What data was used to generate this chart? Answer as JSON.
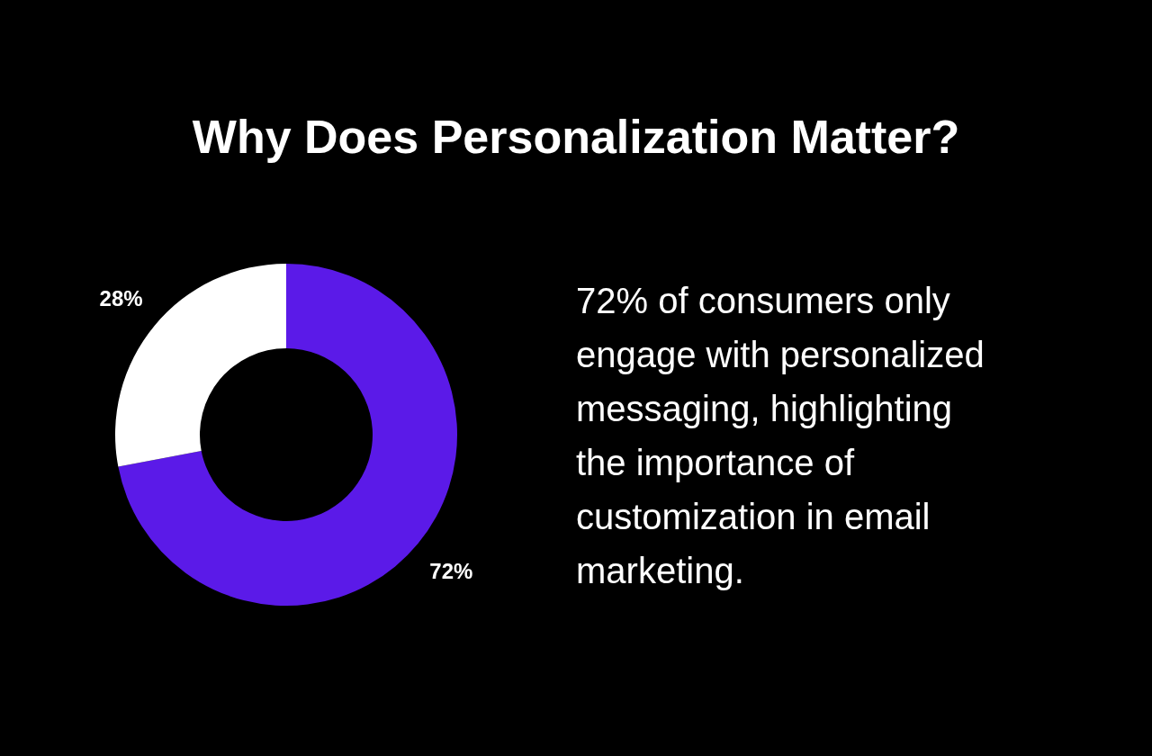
{
  "chart_data": {
    "type": "donut",
    "title": "Why Does Personalization Matter?",
    "categories": [
      null,
      null
    ],
    "values": [
      72,
      28
    ],
    "colors": [
      "#5b1ae8",
      "#ffffff"
    ],
    "value_labels": [
      "72%",
      "28%"
    ],
    "annotations": [
      "72% of consumers only engage with personalized messaging, highlighting the importance of customization in email marketing."
    ]
  }
}
